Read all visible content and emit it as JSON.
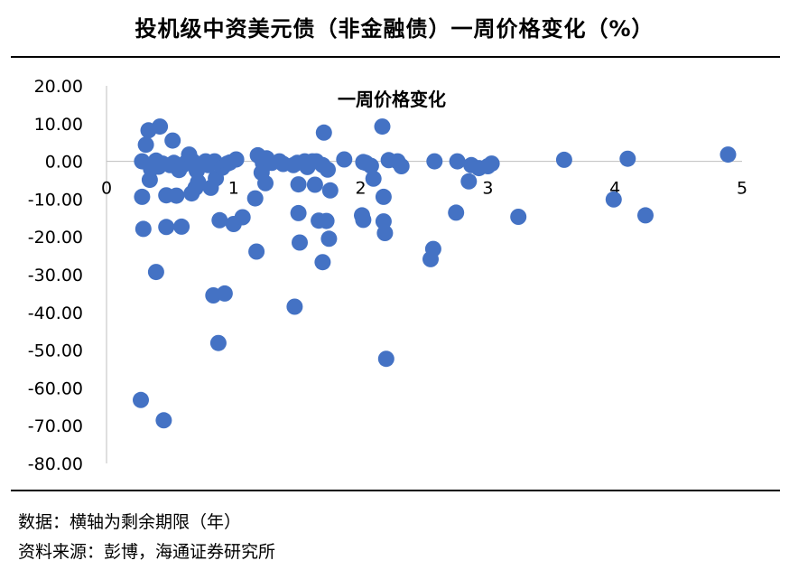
{
  "page": {
    "header_title": "投机级中资美元债（非金融债）一周价格变化（%）",
    "footnotes": [
      "数据：横轴为剩余期限（年）",
      "资料来源：彭博，海通证券研究所"
    ]
  },
  "chart_data": {
    "type": "scatter",
    "title": "一周价格变化",
    "xlabel": "",
    "ylabel": "",
    "xlim": [
      0,
      5
    ],
    "ylim": [
      -80,
      20
    ],
    "x_ticks": [
      "0",
      "1",
      "2",
      "3",
      "4",
      "5"
    ],
    "y_ticks": [
      "20.00",
      "10.00",
      "0.00",
      "-10.00",
      "-20.00",
      "-30.00",
      "-40.00",
      "-50.00",
      "-60.00",
      "-70.00",
      "-80.00"
    ],
    "grid": false,
    "legend": "none",
    "marker_color": "#4472C4",
    "points": [
      {
        "x": 0.27,
        "y": -63.2
      },
      {
        "x": 0.28,
        "y": 0.0
      },
      {
        "x": 0.28,
        "y": -9.4
      },
      {
        "x": 0.29,
        "y": -17.9
      },
      {
        "x": 0.31,
        "y": 4.4
      },
      {
        "x": 0.33,
        "y": 8.2
      },
      {
        "x": 0.34,
        "y": -4.9
      },
      {
        "x": 0.35,
        "y": -2.0
      },
      {
        "x": 0.37,
        "y": -0.9
      },
      {
        "x": 0.39,
        "y": 0.2
      },
      {
        "x": 0.39,
        "y": -29.3
      },
      {
        "x": 0.41,
        "y": -1.4
      },
      {
        "x": 0.42,
        "y": 9.2
      },
      {
        "x": 0.44,
        "y": -0.6
      },
      {
        "x": 0.45,
        "y": -68.6
      },
      {
        "x": 0.47,
        "y": -9.0
      },
      {
        "x": 0.47,
        "y": -17.4
      },
      {
        "x": 0.5,
        "y": -1.0
      },
      {
        "x": 0.52,
        "y": 5.5
      },
      {
        "x": 0.53,
        "y": -0.4
      },
      {
        "x": 0.55,
        "y": -9.1
      },
      {
        "x": 0.57,
        "y": -2.3
      },
      {
        "x": 0.59,
        "y": -17.3
      },
      {
        "x": 0.61,
        "y": -0.8
      },
      {
        "x": 0.63,
        "y": -0.2
      },
      {
        "x": 0.65,
        "y": 1.8
      },
      {
        "x": 0.67,
        "y": -8.5
      },
      {
        "x": 0.68,
        "y": 0.0
      },
      {
        "x": 0.7,
        "y": -7.0
      },
      {
        "x": 0.71,
        "y": -2.5
      },
      {
        "x": 0.72,
        "y": -5.5
      },
      {
        "x": 0.75,
        "y": -0.7
      },
      {
        "x": 0.78,
        "y": 0.0
      },
      {
        "x": 0.8,
        "y": -1.0
      },
      {
        "x": 0.82,
        "y": -7.0
      },
      {
        "x": 0.84,
        "y": -35.5
      },
      {
        "x": 0.85,
        "y": 0.0
      },
      {
        "x": 0.86,
        "y": -4.5
      },
      {
        "x": 0.88,
        "y": -48.1
      },
      {
        "x": 0.89,
        "y": -15.6
      },
      {
        "x": 0.91,
        "y": -1.7
      },
      {
        "x": 0.93,
        "y": -35.0
      },
      {
        "x": 0.95,
        "y": -0.6
      },
      {
        "x": 0.97,
        "y": -0.3
      },
      {
        "x": 1.0,
        "y": -16.6
      },
      {
        "x": 1.02,
        "y": 0.5
      },
      {
        "x": 1.07,
        "y": -14.8
      },
      {
        "x": 1.17,
        "y": -9.8
      },
      {
        "x": 1.18,
        "y": -23.9
      },
      {
        "x": 1.19,
        "y": 1.6
      },
      {
        "x": 1.22,
        "y": -3.0
      },
      {
        "x": 1.23,
        "y": -0.4
      },
      {
        "x": 1.24,
        "y": -1.0
      },
      {
        "x": 1.25,
        "y": -5.8
      },
      {
        "x": 1.26,
        "y": 0.8
      },
      {
        "x": 1.3,
        "y": -0.4
      },
      {
        "x": 1.36,
        "y": 0.0
      },
      {
        "x": 1.39,
        "y": -0.7
      },
      {
        "x": 1.47,
        "y": -1.0
      },
      {
        "x": 1.48,
        "y": -38.5
      },
      {
        "x": 1.5,
        "y": -0.4
      },
      {
        "x": 1.51,
        "y": -13.7
      },
      {
        "x": 1.51,
        "y": -6.1
      },
      {
        "x": 1.52,
        "y": -21.5
      },
      {
        "x": 1.56,
        "y": 0.0
      },
      {
        "x": 1.58,
        "y": -1.5
      },
      {
        "x": 1.62,
        "y": 0.0
      },
      {
        "x": 1.64,
        "y": -6.2
      },
      {
        "x": 1.65,
        "y": 0.0
      },
      {
        "x": 1.67,
        "y": -15.7
      },
      {
        "x": 1.7,
        "y": -26.7
      },
      {
        "x": 1.7,
        "y": -1.0
      },
      {
        "x": 1.71,
        "y": 7.6
      },
      {
        "x": 1.73,
        "y": -15.8
      },
      {
        "x": 1.74,
        "y": -2.2
      },
      {
        "x": 1.75,
        "y": -20.5
      },
      {
        "x": 1.76,
        "y": -7.7
      },
      {
        "x": 1.87,
        "y": 0.5
      },
      {
        "x": 2.01,
        "y": -14.3
      },
      {
        "x": 2.02,
        "y": -0.2
      },
      {
        "x": 2.02,
        "y": -15.5
      },
      {
        "x": 2.04,
        "y": -0.4
      },
      {
        "x": 2.08,
        "y": -1.2
      },
      {
        "x": 2.1,
        "y": -4.6
      },
      {
        "x": 2.17,
        "y": 9.2
      },
      {
        "x": 2.18,
        "y": -9.4
      },
      {
        "x": 2.18,
        "y": -15.9
      },
      {
        "x": 2.19,
        "y": -19.0
      },
      {
        "x": 2.2,
        "y": -52.3
      },
      {
        "x": 2.22,
        "y": 0.3
      },
      {
        "x": 2.29,
        "y": 0.0
      },
      {
        "x": 2.32,
        "y": -1.3
      },
      {
        "x": 2.55,
        "y": -25.9
      },
      {
        "x": 2.57,
        "y": -23.2
      },
      {
        "x": 2.58,
        "y": 0.0
      },
      {
        "x": 2.75,
        "y": -13.6
      },
      {
        "x": 2.76,
        "y": 0.0
      },
      {
        "x": 2.85,
        "y": -5.3
      },
      {
        "x": 2.87,
        "y": -1.0
      },
      {
        "x": 2.93,
        "y": -1.8
      },
      {
        "x": 3.0,
        "y": -1.3
      },
      {
        "x": 3.03,
        "y": -0.6
      },
      {
        "x": 3.24,
        "y": -14.7
      },
      {
        "x": 3.6,
        "y": 0.4
      },
      {
        "x": 3.99,
        "y": -10.1
      },
      {
        "x": 4.1,
        "y": 0.7
      },
      {
        "x": 4.24,
        "y": -14.3
      },
      {
        "x": 4.89,
        "y": 1.8
      }
    ]
  }
}
